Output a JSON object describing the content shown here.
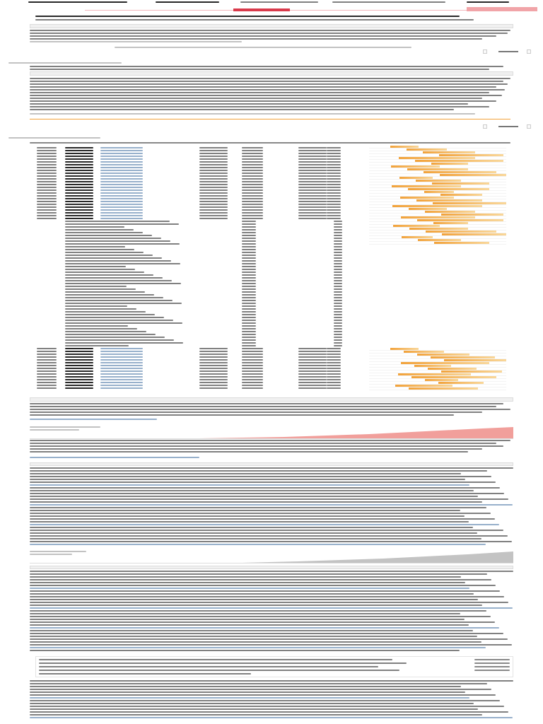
{
  "header": {
    "title": "",
    "nav_items": [
      "",
      "",
      "",
      "",
      "",
      "",
      "",
      ""
    ],
    "accent_color": "#d93a4b"
  },
  "section_one": {
    "heading": "",
    "table_header": "",
    "pager": {
      "prev": "",
      "next": ""
    }
  },
  "section_two": {
    "heading": "",
    "table_header": "",
    "pager": {
      "prev": "",
      "next": ""
    }
  },
  "section_three": {
    "heading": "",
    "gantt_color": "#f2a23a",
    "gantt_light_color": "#f9d79a"
  },
  "chart_panels": [
    {
      "name": "",
      "color": "#ef8e8a"
    },
    {
      "name": "",
      "color": "#bdbdbd"
    }
  ],
  "footer_table": {
    "heading": ""
  },
  "icons": [
    "chevron-left-icon",
    "chevron-right-icon"
  ]
}
